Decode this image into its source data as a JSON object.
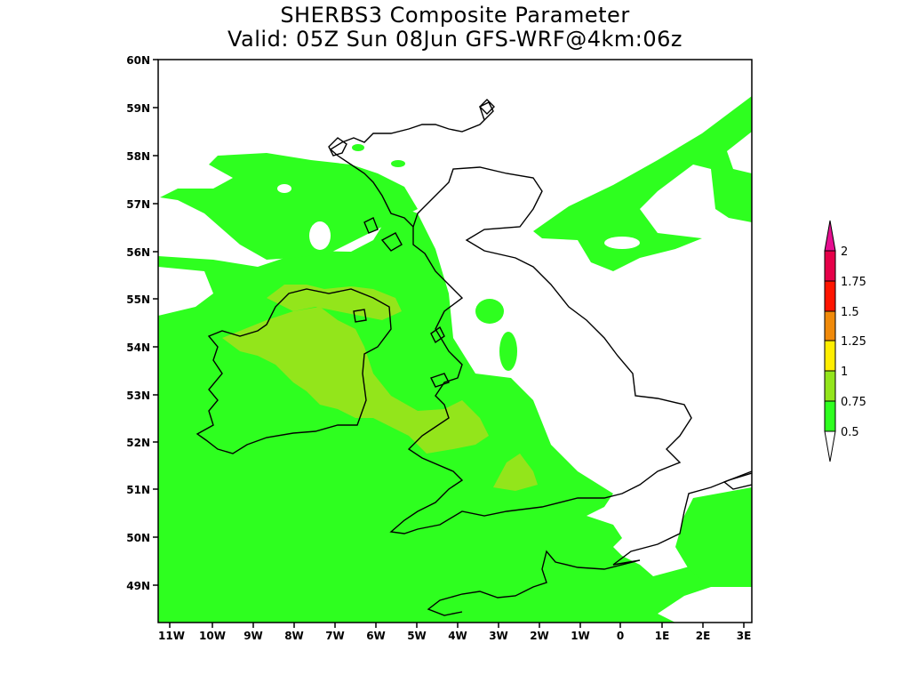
{
  "title": {
    "line1": "SHERBS3 Composite Parameter",
    "line2": "Valid: 05Z Sun 08Jun GFS-WRF@4km:06z"
  },
  "axes": {
    "lat_labels": [
      "60N",
      "59N",
      "58N",
      "57N",
      "56N",
      "55N",
      "54N",
      "53N",
      "52N",
      "51N",
      "50N",
      "49N"
    ],
    "lon_labels": [
      "11W",
      "10W",
      "9W",
      "8W",
      "7W",
      "6W",
      "5W",
      "4W",
      "3W",
      "2W",
      "1W",
      "0",
      "1E",
      "2E",
      "3E"
    ]
  },
  "colorbar": {
    "levels": [
      "0.5",
      "0.75",
      "1",
      "1.25",
      "1.5",
      "1.75",
      "2"
    ],
    "colors": [
      "#2eff1f",
      "#93e51b",
      "#ffee00",
      "#f08a0a",
      "#ff1500",
      "#e60049",
      "#e60e90"
    ]
  },
  "fill_colors": {
    "level_0_5": "#2eff1f",
    "level_0_75": "#93e51b"
  }
}
